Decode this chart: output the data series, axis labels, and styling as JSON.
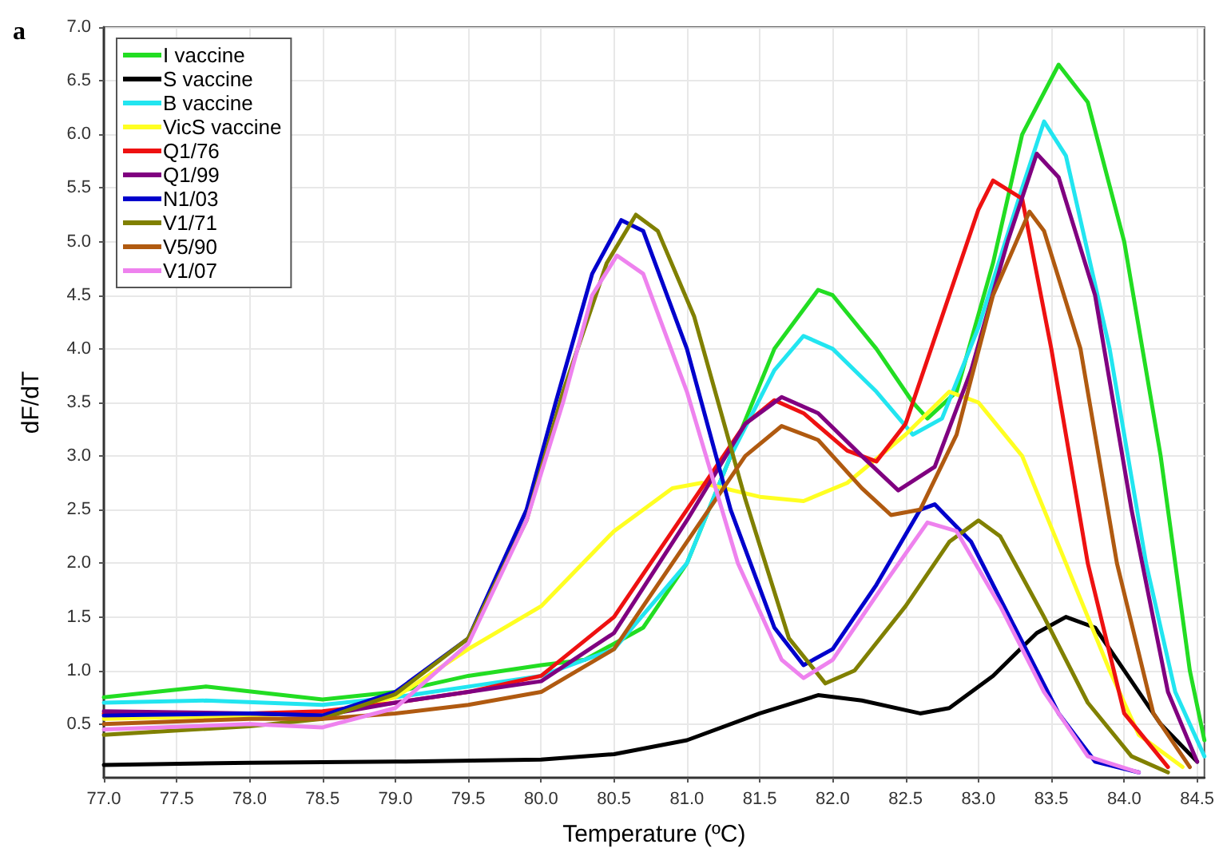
{
  "chart_data": {
    "type": "line",
    "xlabel": "Temperature (ºC)",
    "ylabel": "dF/dT",
    "annotations": [
      "a"
    ],
    "xlim": [
      77,
      84.55
    ],
    "ylim": [
      0,
      7
    ],
    "xticks": [
      {
        "value": 77,
        "label": "77.0"
      },
      {
        "value": 77.5,
        "label": "77.5"
      },
      {
        "value": 78,
        "label": "78.0"
      },
      {
        "value": 78.5,
        "label": "78.5"
      },
      {
        "value": 79,
        "label": "79.0"
      },
      {
        "value": 79.5,
        "label": "79.5"
      },
      {
        "value": 80,
        "label": "80.0"
      },
      {
        "value": 80.5,
        "label": "80.5"
      },
      {
        "value": 81,
        "label": "81.0"
      },
      {
        "value": 81.5,
        "label": "81.5"
      },
      {
        "value": 82,
        "label": "82.0"
      },
      {
        "value": 82.5,
        "label": "82.5"
      },
      {
        "value": 83,
        "label": "83.0"
      },
      {
        "value": 83.5,
        "label": "83.5"
      },
      {
        "value": 84,
        "label": "84.0"
      },
      {
        "value": 84.5,
        "label": "84.5"
      }
    ],
    "yticks": [
      {
        "value": 0.5,
        "label": "0.5"
      },
      {
        "value": 1,
        "label": "1.0"
      },
      {
        "value": 1.5,
        "label": "1.5"
      },
      {
        "value": 2,
        "label": "2.0"
      },
      {
        "value": 2.5,
        "label": "2.5"
      },
      {
        "value": 3,
        "label": "3.0"
      },
      {
        "value": 3.5,
        "label": "3.5"
      },
      {
        "value": 4,
        "label": "4.0"
      },
      {
        "value": 4.5,
        "label": "4.5"
      },
      {
        "value": 5,
        "label": "5.0"
      },
      {
        "value": 5.5,
        "label": "5.5"
      },
      {
        "value": 6,
        "label": "6.0"
      },
      {
        "value": 6.5,
        "label": "6.5"
      },
      {
        "value": 7,
        "label": "7.0"
      }
    ],
    "grid": true,
    "legend": "top left",
    "marker": "none",
    "line_style": "solid",
    "series": [
      {
        "name": "I vaccine",
        "color": "#22dd22",
        "x": [
          77,
          77.7,
          78.5,
          79,
          79.5,
          80,
          80.3,
          80.7,
          81,
          81.3,
          81.6,
          81.9,
          82,
          82.3,
          82.55,
          82.65,
          82.85,
          83.1,
          83.3,
          83.55,
          83.75,
          84,
          84.25,
          84.45,
          84.55
        ],
        "values": [
          0.75,
          0.85,
          0.73,
          0.8,
          0.95,
          1.05,
          1.1,
          1.4,
          2,
          3,
          4,
          4.55,
          4.5,
          4,
          3.5,
          3.35,
          3.6,
          4.8,
          6,
          6.65,
          6.3,
          5,
          3,
          1,
          0.35
        ]
      },
      {
        "name": "S vaccine",
        "color": "#000000",
        "x": [
          77,
          78,
          79,
          80,
          80.5,
          81,
          81.5,
          81.9,
          82.2,
          82.6,
          82.8,
          83.1,
          83.4,
          83.6,
          83.8,
          84,
          84.25,
          84.5
        ],
        "values": [
          0.12,
          0.14,
          0.15,
          0.17,
          0.22,
          0.35,
          0.6,
          0.77,
          0.72,
          0.6,
          0.65,
          0.95,
          1.35,
          1.5,
          1.4,
          1,
          0.5,
          0.15
        ]
      },
      {
        "name": "B vaccine",
        "color": "#22e5f0",
        "x": [
          77,
          77.7,
          78.5,
          79,
          79.5,
          80,
          80.5,
          81,
          81.3,
          81.6,
          81.8,
          82,
          82.3,
          82.55,
          82.75,
          83,
          83.3,
          83.45,
          83.6,
          83.9,
          84.15,
          84.35,
          84.55
        ],
        "values": [
          0.7,
          0.72,
          0.68,
          0.75,
          0.85,
          0.95,
          1.2,
          2,
          3,
          3.8,
          4.12,
          4,
          3.6,
          3.2,
          3.35,
          4.2,
          5.5,
          6.12,
          5.8,
          4,
          2,
          0.8,
          0.2
        ]
      },
      {
        "name": "VicS vaccine",
        "color": "#ffff22",
        "x": [
          77,
          78,
          78.5,
          79,
          79.5,
          80,
          80.5,
          80.9,
          81.1,
          81.5,
          81.8,
          82.1,
          82.5,
          82.8,
          83,
          83.3,
          83.6,
          83.9,
          84.1,
          84.4
        ],
        "values": [
          0.55,
          0.58,
          0.6,
          0.75,
          1.2,
          1.6,
          2.3,
          2.7,
          2.75,
          2.62,
          2.58,
          2.75,
          3.2,
          3.6,
          3.5,
          3,
          2,
          1,
          0.4,
          0.1
        ]
      },
      {
        "name": "Q1/76",
        "color": "#ee1111",
        "x": [
          77,
          78,
          78.5,
          79,
          79.5,
          80,
          80.5,
          81,
          81.4,
          81.6,
          81.8,
          82.1,
          82.3,
          82.5,
          82.75,
          83,
          83.1,
          83.3,
          83.5,
          83.75,
          84,
          84.3
        ],
        "values": [
          0.6,
          0.6,
          0.62,
          0.7,
          0.8,
          0.95,
          1.5,
          2.5,
          3.3,
          3.52,
          3.4,
          3.05,
          2.95,
          3.3,
          4.3,
          5.3,
          5.57,
          5.4,
          4,
          2,
          0.6,
          0.1
        ]
      },
      {
        "name": "Q1/99",
        "color": "#800080",
        "x": [
          77,
          78,
          78.5,
          79,
          79.5,
          80,
          80.5,
          81,
          81.4,
          81.65,
          81.9,
          82.2,
          82.45,
          82.7,
          82.95,
          83.2,
          83.4,
          83.55,
          83.8,
          84.05,
          84.3,
          84.5
        ],
        "values": [
          0.62,
          0.6,
          0.58,
          0.7,
          0.8,
          0.9,
          1.35,
          2.4,
          3.3,
          3.55,
          3.4,
          3,
          2.68,
          2.9,
          3.8,
          5,
          5.82,
          5.6,
          4.5,
          2.5,
          0.8,
          0.15
        ]
      },
      {
        "name": "N1/03",
        "color": "#0000cc",
        "x": [
          77,
          78,
          78.5,
          79,
          79.5,
          79.9,
          80.1,
          80.35,
          80.55,
          80.7,
          81,
          81.3,
          81.6,
          81.8,
          82,
          82.3,
          82.6,
          82.7,
          82.95,
          83.25,
          83.55,
          83.8,
          84.1
        ],
        "values": [
          0.58,
          0.6,
          0.58,
          0.8,
          1.3,
          2.5,
          3.5,
          4.7,
          5.2,
          5.1,
          4,
          2.5,
          1.4,
          1.05,
          1.2,
          1.8,
          2.5,
          2.55,
          2.2,
          1.4,
          0.6,
          0.15,
          0.05
        ]
      },
      {
        "name": "V1/71",
        "color": "#808000",
        "x": [
          77,
          78,
          78.5,
          79,
          79.5,
          79.9,
          80.15,
          80.45,
          80.65,
          80.8,
          81.05,
          81.4,
          81.7,
          81.95,
          82.15,
          82.5,
          82.8,
          83,
          83.15,
          83.45,
          83.75,
          84.05,
          84.3
        ],
        "values": [
          0.4,
          0.48,
          0.55,
          0.78,
          1.3,
          2.4,
          3.6,
          4.8,
          5.25,
          5.1,
          4.3,
          2.6,
          1.3,
          0.88,
          1,
          1.6,
          2.2,
          2.4,
          2.25,
          1.5,
          0.7,
          0.2,
          0.05
        ]
      },
      {
        "name": "V5/90",
        "color": "#b05a10",
        "x": [
          77,
          78,
          78.5,
          79,
          79.5,
          80,
          80.5,
          81,
          81.4,
          81.65,
          81.9,
          82.2,
          82.4,
          82.6,
          82.85,
          83.1,
          83.35,
          83.45,
          83.7,
          83.95,
          84.2,
          84.45
        ],
        "values": [
          0.5,
          0.55,
          0.55,
          0.6,
          0.68,
          0.8,
          1.2,
          2.2,
          3,
          3.28,
          3.15,
          2.7,
          2.45,
          2.5,
          3.2,
          4.5,
          5.28,
          5.1,
          4,
          2,
          0.6,
          0.1
        ]
      },
      {
        "name": "V1/07",
        "color": "#ee82ee",
        "x": [
          77,
          78,
          78.5,
          79,
          79.5,
          79.9,
          80.15,
          80.35,
          80.52,
          80.7,
          81,
          81.35,
          81.65,
          81.8,
          82,
          82.35,
          82.65,
          82.85,
          83.15,
          83.45,
          83.75,
          84.1
        ],
        "values": [
          0.45,
          0.5,
          0.47,
          0.65,
          1.25,
          2.4,
          3.5,
          4.5,
          4.87,
          4.7,
          3.6,
          2,
          1.1,
          0.93,
          1.1,
          1.8,
          2.38,
          2.3,
          1.6,
          0.8,
          0.2,
          0.05
        ]
      }
    ]
  }
}
